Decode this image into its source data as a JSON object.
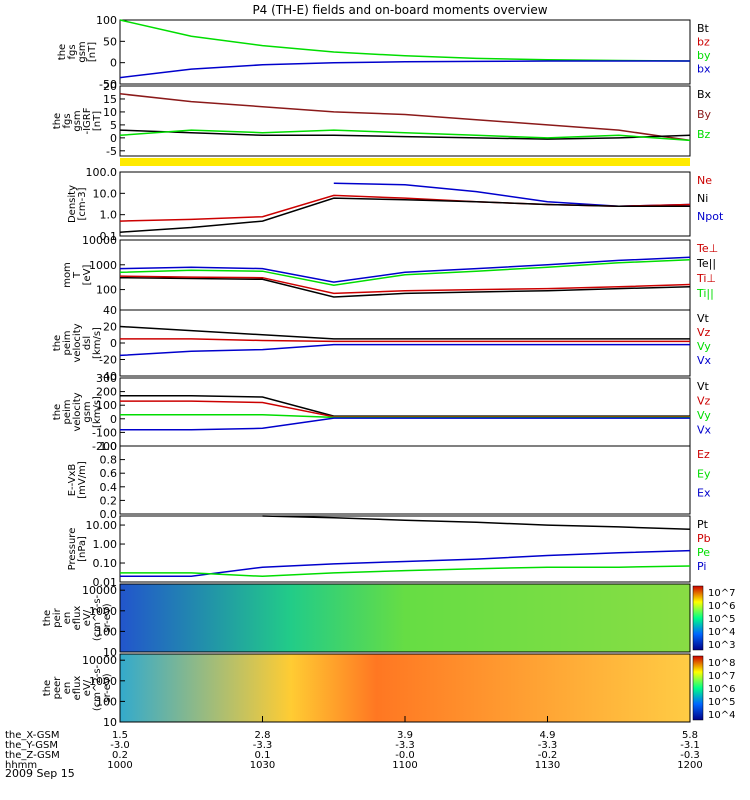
{
  "title": "P4 (TH-E) fields and on-board moments overview",
  "date_label": "2009 Sep 15",
  "ephemeris": {
    "row_labels": [
      "the_X-GSM",
      "the_Y-GSM",
      "the_Z-GSM",
      "hhmm"
    ],
    "columns": [
      [
        "1.5",
        "-3.0",
        "0.2",
        "1000"
      ],
      [
        "2.8",
        "-3.3",
        "0.1",
        "1030"
      ],
      [
        "3.9",
        "-3.3",
        "-0.0",
        "1100"
      ],
      [
        "4.9",
        "-3.3",
        "-0.2",
        "1130"
      ],
      [
        "5.8",
        "-3.1",
        "-0.3",
        "1200"
      ]
    ]
  },
  "colors": {
    "black": "#000000",
    "red": "#cc0000",
    "green": "#00dd00",
    "blue": "#0000cc",
    "brown": "#8b1a1a",
    "yellow": "#ffea00"
  },
  "chart_data": [
    {
      "type": "line",
      "ylabel": [
        "the",
        "fgs",
        "gsm",
        "[nT]"
      ],
      "x": [
        0,
        0.125,
        0.25,
        0.375,
        0.5,
        0.625,
        0.75,
        0.875,
        1.0
      ],
      "ylim": [
        -50,
        100
      ],
      "yticks": [
        "100",
        "50",
        "0",
        "-50"
      ],
      "legend": [
        "Bt",
        "bz",
        "by",
        "bx"
      ],
      "legend_colors": [
        "black",
        "red",
        "green",
        "blue"
      ],
      "series": [
        {
          "name": "by",
          "color": "green",
          "values": [
            100,
            62,
            40,
            25,
            16,
            10,
            7,
            5,
            4
          ]
        },
        {
          "name": "bx",
          "color": "blue",
          "values": [
            -35,
            -15,
            -5,
            0,
            2,
            3,
            4,
            4,
            4
          ]
        }
      ]
    },
    {
      "type": "line",
      "ylabel": [
        "the",
        "fgs",
        "gsm",
        "-IGRF",
        "[nT]"
      ],
      "x": [
        0,
        0.125,
        0.25,
        0.375,
        0.5,
        0.625,
        0.75,
        0.875,
        1.0
      ],
      "ylim": [
        -7,
        20
      ],
      "yticks": [
        "20",
        "15",
        "10",
        "5",
        "0",
        "-5"
      ],
      "legend": [
        "Bx",
        "By",
        "Bz"
      ],
      "legend_colors": [
        "black",
        "brown",
        "green"
      ],
      "series": [
        {
          "name": "Bz",
          "color": "brown",
          "values": [
            17,
            14,
            12,
            10,
            9,
            7,
            5,
            3,
            -1
          ]
        },
        {
          "name": "Bx",
          "color": "black",
          "values": [
            3,
            2,
            1,
            1,
            0.5,
            0,
            -0.5,
            0,
            1
          ]
        },
        {
          "name": "By",
          "color": "green",
          "values": [
            1,
            3,
            2,
            3,
            2,
            1,
            0,
            1,
            -1
          ]
        }
      ]
    },
    {
      "type": "line",
      "ylabel": [
        "Density",
        "[cm-3]"
      ],
      "scale": "log",
      "x": [
        0,
        0.125,
        0.25,
        0.375,
        0.5,
        0.625,
        0.75,
        0.875,
        1.0
      ],
      "ylim": [
        0.1,
        100
      ],
      "yticks": [
        "100.0",
        "10.0",
        "1.0",
        "0.1"
      ],
      "legend": [
        "Ne",
        "Ni",
        "Npot"
      ],
      "legend_colors": [
        "red",
        "black",
        "blue"
      ],
      "series": [
        {
          "name": "Npot",
          "color": "blue",
          "values": [
            null,
            null,
            null,
            30,
            25,
            12,
            4,
            2.5,
            3
          ]
        },
        {
          "name": "Ne",
          "color": "red",
          "values": [
            0.5,
            0.6,
            0.8,
            8,
            6,
            4,
            3,
            2.5,
            3
          ]
        },
        {
          "name": "Ni",
          "color": "black",
          "values": [
            0.15,
            0.25,
            0.5,
            6,
            5,
            4,
            3,
            2.5,
            2.5
          ]
        }
      ]
    },
    {
      "type": "line",
      "ylabel": [
        "mom",
        "T",
        "[eV]"
      ],
      "scale": "log",
      "x": [
        0,
        0.125,
        0.25,
        0.375,
        0.5,
        0.625,
        0.75,
        0.875,
        1.0
      ],
      "ylim": [
        15,
        10000
      ],
      "yticks": [
        "10000",
        "1000",
        "100"
      ],
      "legend": [
        "Te⊥",
        "Te||",
        "Ti⊥",
        "Ti||"
      ],
      "legend_colors": [
        "red",
        "black",
        "red",
        "green"
      ],
      "series": [
        {
          "name": "Ti||",
          "color": "blue",
          "values": [
            700,
            800,
            700,
            200,
            500,
            700,
            1000,
            1500,
            2000
          ]
        },
        {
          "name": "Ti⊥",
          "color": "green",
          "values": [
            500,
            600,
            550,
            150,
            400,
            550,
            800,
            1200,
            1600
          ]
        },
        {
          "name": "Te⊥",
          "color": "black",
          "values": [
            300,
            280,
            260,
            50,
            70,
            80,
            90,
            110,
            130
          ]
        },
        {
          "name": "Te||",
          "color": "red",
          "values": [
            350,
            320,
            300,
            70,
            90,
            100,
            110,
            130,
            160
          ]
        }
      ]
    },
    {
      "type": "line",
      "ylabel": [
        "the",
        "peim",
        "velocity",
        "dsl",
        "[km/s]"
      ],
      "x": [
        0,
        0.125,
        0.25,
        0.375,
        0.5,
        0.625,
        0.75,
        0.875,
        1.0
      ],
      "ylim": [
        -40,
        40
      ],
      "yticks": [
        "40",
        "20",
        "0",
        "-20",
        "-40"
      ],
      "legend": [
        "Vt",
        "Vz",
        "Vy",
        "Vx"
      ],
      "legend_colors": [
        "black",
        "red",
        "green",
        "blue"
      ],
      "series": [
        {
          "name": "Vt",
          "color": "black",
          "values": [
            20,
            15,
            10,
            5,
            5,
            5,
            5,
            5,
            5
          ]
        },
        {
          "name": "Vz",
          "color": "red",
          "values": [
            5,
            5,
            3,
            2,
            2,
            2,
            2,
            2,
            2
          ]
        },
        {
          "name": "Vx",
          "color": "blue",
          "values": [
            -15,
            -10,
            -8,
            -2,
            -2,
            -2,
            -2,
            -2,
            -2
          ]
        }
      ]
    },
    {
      "type": "line",
      "ylabel": [
        "the",
        "peim",
        "velocity",
        "gsm",
        "[km/s]"
      ],
      "x": [
        0,
        0.125,
        0.25,
        0.375,
        0.5,
        0.625,
        0.75,
        0.875,
        1.0
      ],
      "ylim": [
        -200,
        300
      ],
      "yticks": [
        "300",
        "200",
        "100",
        "0",
        "-100",
        "-200"
      ],
      "legend": [
        "Vt",
        "Vz",
        "Vy",
        "Vx"
      ],
      "legend_colors": [
        "black",
        "red",
        "green",
        "blue"
      ],
      "series": [
        {
          "name": "Vt",
          "color": "black",
          "values": [
            170,
            170,
            160,
            20,
            20,
            20,
            20,
            20,
            20
          ]
        },
        {
          "name": "Vz",
          "color": "red",
          "values": [
            130,
            130,
            120,
            15,
            15,
            15,
            15,
            15,
            15
          ]
        },
        {
          "name": "Vy",
          "color": "green",
          "values": [
            30,
            30,
            30,
            10,
            10,
            10,
            10,
            10,
            10
          ]
        },
        {
          "name": "Vx",
          "color": "blue",
          "values": [
            -80,
            -80,
            -70,
            5,
            5,
            5,
            5,
            5,
            5
          ]
        }
      ]
    },
    {
      "type": "line",
      "ylabel": [
        "E--VxB",
        "[mV/m]"
      ],
      "x": [],
      "ylim": [
        0,
        1
      ],
      "yticks": [
        "1.0",
        "0.8",
        "0.6",
        "0.4",
        "0.2",
        "0.0"
      ],
      "legend": [
        "Ez",
        "Ey",
        "Ex"
      ],
      "legend_colors": [
        "red",
        "green",
        "blue"
      ],
      "series": []
    },
    {
      "type": "line",
      "ylabel": [
        "Pressure",
        "[nPa]"
      ],
      "scale": "log",
      "x": [
        0,
        0.125,
        0.25,
        0.375,
        0.5,
        0.625,
        0.75,
        0.875,
        1.0
      ],
      "ylim": [
        0.01,
        30
      ],
      "yticks": [
        "10.00",
        "1.00",
        "0.10",
        "0.01"
      ],
      "legend": [
        "Pt",
        "Pb",
        "Pe",
        "Pi"
      ],
      "legend_colors": [
        "black",
        "red",
        "green",
        "blue"
      ],
      "series": [
        {
          "name": "Pt",
          "color": "black",
          "values": [
            null,
            null,
            30,
            24,
            18,
            14,
            10,
            8,
            6
          ]
        },
        {
          "name": "Pi",
          "color": "blue",
          "values": [
            0.02,
            0.02,
            0.06,
            0.09,
            0.12,
            0.16,
            0.25,
            0.35,
            0.45
          ]
        },
        {
          "name": "Pe",
          "color": "green",
          "values": [
            0.03,
            0.03,
            0.02,
            0.03,
            0.04,
            0.05,
            0.06,
            0.06,
            0.07
          ]
        }
      ]
    },
    {
      "type": "heatmap",
      "ylabel": [
        "the",
        "peir",
        "en",
        "eflux",
        "eV/",
        "(cm^2-s-",
        "sr-eV)"
      ],
      "scale": "log",
      "ylim": [
        10,
        20000
      ],
      "yticks": [
        "10000",
        "1000",
        "100",
        "10"
      ],
      "colorbar_ticks": [
        "10^7",
        "10^6",
        "10^5",
        "10^4",
        "10^3"
      ]
    },
    {
      "type": "heatmap",
      "ylabel": [
        "the",
        "peer",
        "en",
        "eflux",
        "eV/",
        "(cm^2-s-",
        "sr-eV)"
      ],
      "scale": "log",
      "ylim": [
        10,
        20000
      ],
      "yticks": [
        "10000",
        "1000",
        "100",
        "10"
      ],
      "colorbar_ticks": [
        "10^8",
        "10^7",
        "10^6",
        "10^5",
        "10^4"
      ]
    }
  ]
}
